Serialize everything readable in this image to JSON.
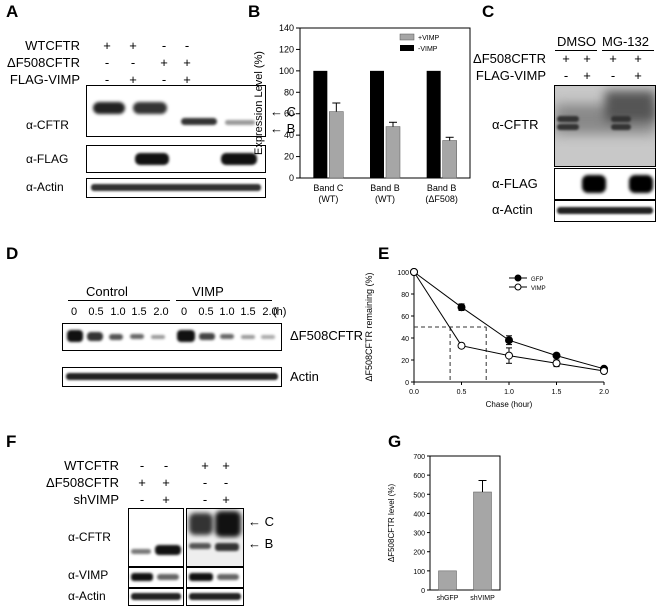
{
  "panels": {
    "A": {
      "label": "A",
      "rows": [
        {
          "name": "WTCFTR",
          "signs": [
            "+",
            "+",
            "-",
            "-"
          ]
        },
        {
          "name": "ΔF508CFTR",
          "signs": [
            "-",
            "-",
            "+",
            "+"
          ]
        },
        {
          "name": "FLAG-VIMP",
          "signs": [
            "-",
            "+",
            "-",
            "+"
          ]
        }
      ],
      "blots": [
        "α-CFTR",
        "α-FLAG",
        "α-Actin"
      ],
      "band_c": "C",
      "band_b": "B"
    },
    "B": {
      "label": "B"
    },
    "C": {
      "label": "C",
      "treat1": "DMSO",
      "treat2": "MG-132",
      "rows": [
        {
          "name": "ΔF508CFTR",
          "signs": [
            "+",
            "+",
            "+",
            "+"
          ]
        },
        {
          "name": "FLAG-VIMP",
          "signs": [
            "-",
            "+",
            "-",
            "+"
          ]
        }
      ],
      "blots": [
        "α-CFTR",
        "α-FLAG",
        "α-Actin"
      ]
    },
    "D": {
      "label": "D",
      "group1": "Control",
      "group2": "VIMP",
      "times": [
        "0",
        "0.5",
        "1.0",
        "1.5",
        "2.0"
      ],
      "unit": "(h)",
      "blots": [
        "ΔF508CFTR",
        "Actin"
      ]
    },
    "E": {
      "label": "E"
    },
    "F": {
      "label": "F",
      "rows": [
        {
          "name": "WTCFTR",
          "signs": [
            "-",
            "-",
            "+",
            "+"
          ]
        },
        {
          "name": "ΔF508CFTR",
          "signs": [
            "+",
            "+",
            "-",
            "-"
          ]
        },
        {
          "name": "shVIMP",
          "signs": [
            "-",
            "+",
            "-",
            "+"
          ]
        }
      ],
      "blots": [
        "α-CFTR",
        "α-VIMP",
        "α-Actin"
      ],
      "band_c": "C",
      "band_b": "B"
    },
    "G": {
      "label": "G"
    }
  },
  "chart_data": [
    {
      "panel": "B",
      "type": "bar",
      "categories": [
        "Band C\n(WT)",
        "Band B\n(WT)",
        "Band B\n(ΔF508)"
      ],
      "series": [
        {
          "name": "-VIMP",
          "values": [
            100,
            100,
            100
          ],
          "color": "#000000"
        },
        {
          "name": "+VIMP",
          "values": [
            62,
            48,
            35
          ],
          "errors": [
            8,
            4,
            3
          ],
          "color": "#a6a6a6"
        }
      ],
      "ylabel": "Expression Level (%)",
      "ylim": [
        0,
        140
      ],
      "yticks": [
        0,
        20,
        40,
        60,
        80,
        100,
        120,
        140
      ],
      "legend": "top-right"
    },
    {
      "panel": "E",
      "type": "line",
      "x": [
        0.0,
        0.5,
        1.0,
        1.5,
        2.0
      ],
      "series": [
        {
          "name": "GFP",
          "values": [
            100,
            68,
            38,
            24,
            12
          ],
          "errors": [
            0,
            3,
            4,
            2,
            2
          ],
          "marker": "filled"
        },
        {
          "name": "VIMP",
          "values": [
            100,
            33,
            24,
            17,
            10
          ],
          "errors": [
            0,
            2,
            7,
            3,
            2
          ],
          "marker": "open"
        }
      ],
      "xlabel": "Chase (hour)",
      "ylabel": "ΔF508CFTR remaining (%)",
      "xlim": [
        0.0,
        2.0
      ],
      "ylim": [
        0,
        100
      ],
      "xticks": [
        "0.0",
        "0.5",
        "1.0",
        "1.5",
        "2.0"
      ],
      "yticks": [
        0,
        20,
        40,
        60,
        80,
        100
      ],
      "halflife_y": 50,
      "halflife_x": [
        0.38,
        0.76
      ],
      "legend": "top-right"
    },
    {
      "panel": "G",
      "type": "bar",
      "categories": [
        "shGFP",
        "shVIMP"
      ],
      "values": [
        100,
        512
      ],
      "errors": [
        0,
        60
      ],
      "color": "#a6a6a6",
      "ylabel": "ΔF508CFTR level (%)",
      "ylim": [
        0,
        700
      ],
      "yticks": [
        0,
        100,
        200,
        300,
        400,
        500,
        600,
        700
      ]
    }
  ]
}
